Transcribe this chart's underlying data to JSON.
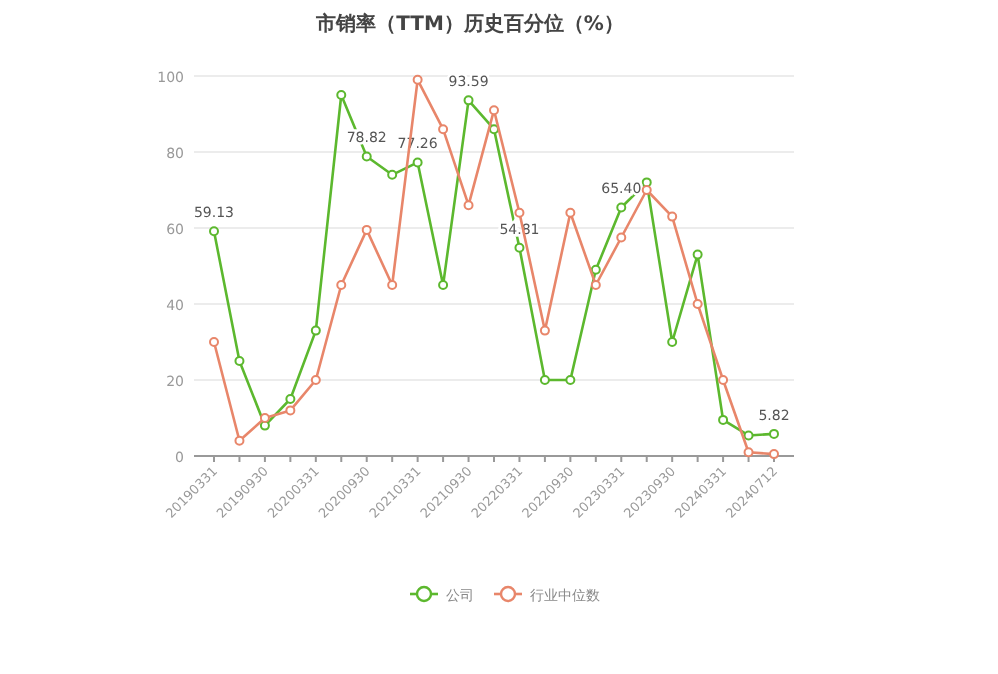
{
  "chart_data": {
    "type": "line",
    "title": "市销率（TTM）历史百分位（%）",
    "categories": [
      "20190331",
      null,
      "20190930",
      null,
      "20200331",
      null,
      "20200930",
      null,
      "20210331",
      null,
      "20210930",
      null,
      "20220331",
      null,
      "20220930",
      null,
      "20230331",
      null,
      "20230930",
      null,
      "20240331",
      null,
      "20240712"
    ],
    "series": [
      {
        "name": "公司",
        "color": "#5cb82e",
        "values": [
          59.13,
          25,
          8,
          15,
          33,
          95,
          78.82,
          74,
          77.26,
          45,
          93.59,
          86,
          54.81,
          20,
          20,
          49,
          65.4,
          72,
          30,
          53,
          9.5,
          5.4,
          5.82
        ],
        "value_labels": [
          "59.13",
          null,
          null,
          null,
          null,
          null,
          "78.82",
          null,
          "77.26",
          null,
          "93.59",
          null,
          "54.81",
          null,
          null,
          null,
          "65.40",
          null,
          null,
          null,
          null,
          null,
          "5.82"
        ]
      },
      {
        "name": "行业中位数",
        "color": "#e8866a",
        "values": [
          30,
          4,
          10,
          12,
          20,
          45,
          59.5,
          45,
          99,
          86,
          66,
          91,
          64,
          33,
          64,
          45,
          57.5,
          70,
          63,
          40,
          20,
          1,
          0.5
        ]
      }
    ],
    "ylim": [
      0,
      100
    ],
    "yticks": [
      0,
      20,
      40,
      60,
      80,
      100
    ],
    "grid": "y",
    "legend": "bottom",
    "marker": "circle",
    "line_style": "solid"
  }
}
